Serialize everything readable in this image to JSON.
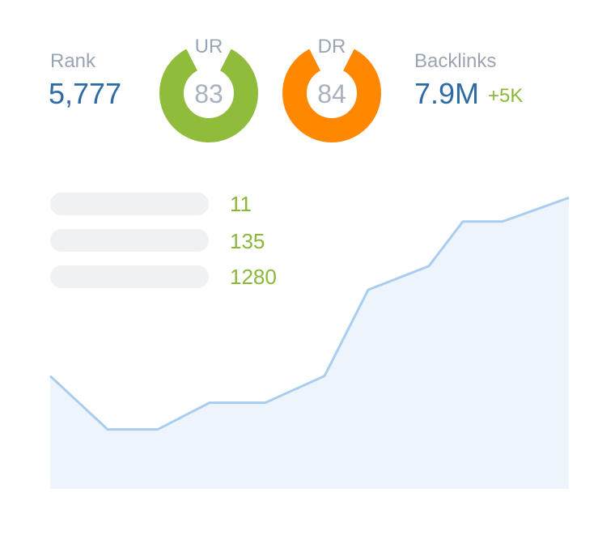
{
  "rank": {
    "label": "Rank",
    "value": "5,777"
  },
  "ur": {
    "label": "UR",
    "value": "83",
    "color": "#8fbc3a",
    "gap_color": "#ffffff"
  },
  "dr": {
    "label": "DR",
    "value": "84",
    "color": "#ff8800",
    "gap_color": "#ffffff"
  },
  "backlinks": {
    "label": "Backlinks",
    "value": "7.9M",
    "delta": "+5K"
  },
  "keywords": [
    {
      "value": "11"
    },
    {
      "value": "135"
    },
    {
      "value": "1280"
    }
  ],
  "colors": {
    "value_blue": "#2f6aa7",
    "label_gray": "#9aa5b3",
    "accent_green": "#8bb83a",
    "area_fill": "#eef4fb",
    "line_stroke": "#a9cdef"
  },
  "chart_data": {
    "type": "area",
    "title": "",
    "xlabel": "",
    "ylabel": "",
    "x": [
      0,
      1,
      2,
      3,
      4,
      5,
      6,
      7,
      8,
      9,
      10
    ],
    "series": [
      {
        "values": [
          38,
          20,
          20,
          29,
          29,
          38,
          67,
          75,
          90,
          90,
          98
        ]
      }
    ],
    "ylim": [
      0,
      100
    ],
    "grid": false,
    "legend": "none"
  }
}
